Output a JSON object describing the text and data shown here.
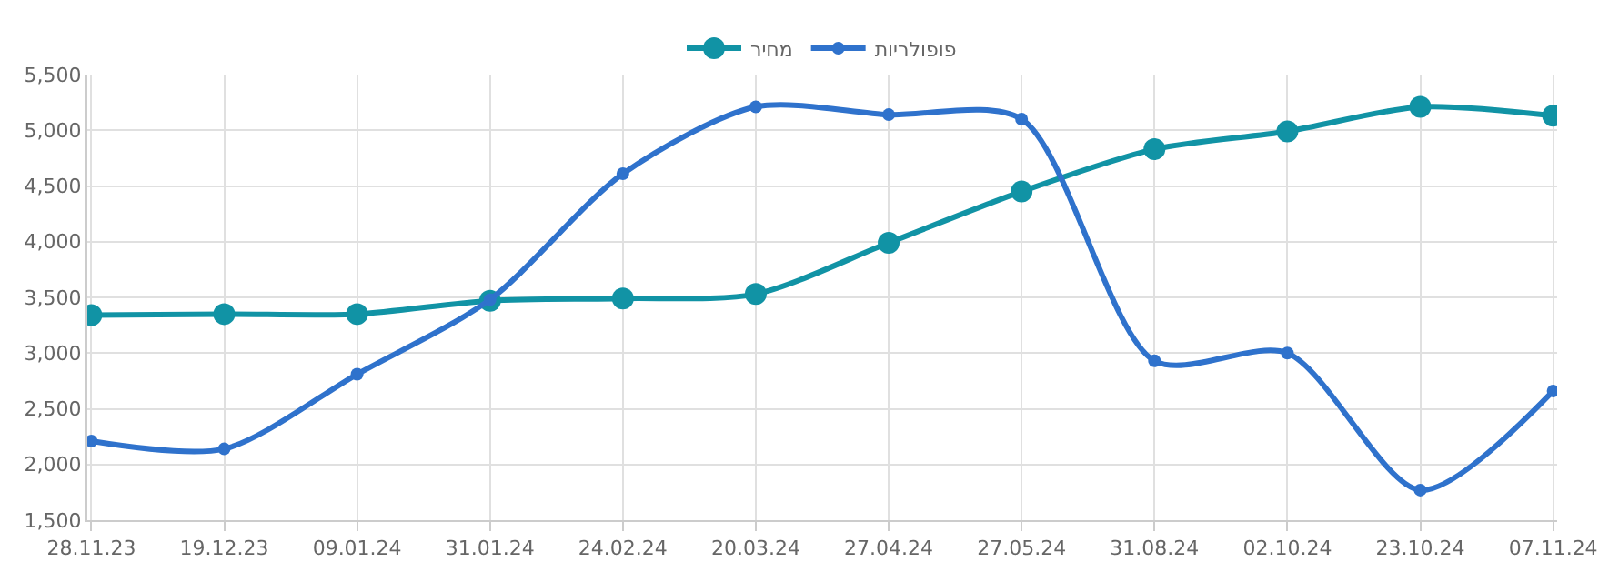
{
  "chart_data": {
    "type": "line",
    "categories": [
      "28.11.23",
      "19.12.23",
      "09.01.24",
      "31.01.24",
      "24.02.24",
      "20.03.24",
      "27.04.24",
      "27.05.24",
      "31.08.24",
      "02.10.24",
      "23.10.24",
      "07.11.24"
    ],
    "series": [
      {
        "name": "מחיר",
        "color": "#1193a5",
        "values": [
          3340,
          3350,
          3350,
          3470,
          3490,
          3530,
          3990,
          4450,
          4830,
          4990,
          5210,
          5130
        ]
      },
      {
        "name": "פופולריות",
        "color": "#2f72cc",
        "values": [
          2210,
          2140,
          2810,
          3480,
          4610,
          5210,
          5140,
          5100,
          2930,
          3000,
          1770,
          2660
        ]
      }
    ],
    "ylim": [
      1500,
      5500
    ],
    "yticks": [
      {
        "value": 1500,
        "label": "1,500"
      },
      {
        "value": 2000,
        "label": "2,000"
      },
      {
        "value": 2500,
        "label": "2,500"
      },
      {
        "value": 3000,
        "label": "3,000"
      },
      {
        "value": 3500,
        "label": "3,500"
      },
      {
        "value": 4000,
        "label": "4,000"
      },
      {
        "value": 4500,
        "label": "4,500"
      },
      {
        "value": 5000,
        "label": "5,000"
      },
      {
        "value": 5500,
        "label": "5,500"
      }
    ],
    "grid": true,
    "legend": "top",
    "marker": "circle",
    "line_style": "solid"
  }
}
